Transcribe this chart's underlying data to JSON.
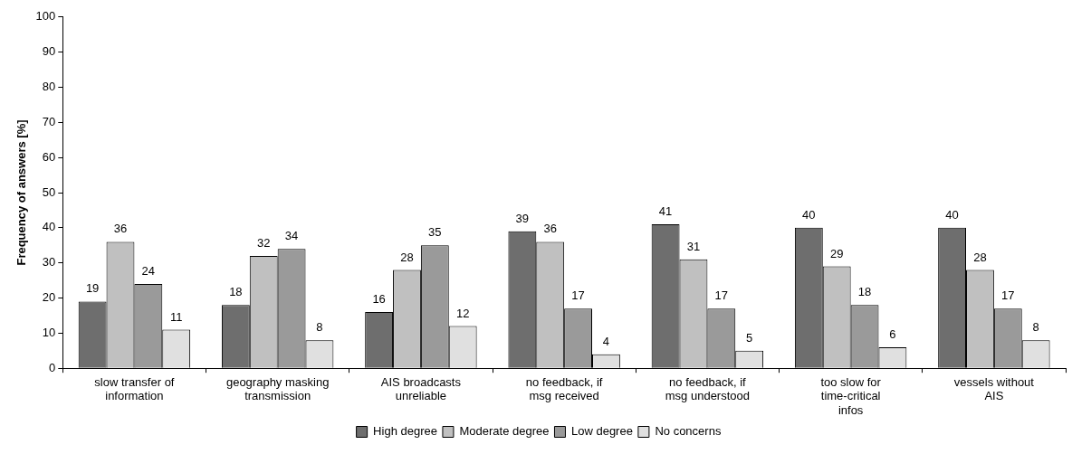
{
  "chart_data": {
    "type": "bar",
    "ylabel": "Frequency of answers [%]",
    "categories": [
      "slow transfer of information",
      "geography masking transmission",
      "AIS broadcasts unreliable",
      "no feedback, if msg received",
      "no feedback, if msg understood",
      "too slow for time-critical infos",
      "vessels without AIS"
    ],
    "series": [
      {
        "name": "High degree",
        "color": "#6e6e6e",
        "values": [
          19,
          18,
          16,
          39,
          41,
          40,
          40
        ]
      },
      {
        "name": "Moderate degree",
        "color": "#c0c0c0",
        "values": [
          36,
          32,
          28,
          36,
          31,
          29,
          28
        ]
      },
      {
        "name": "Low degree",
        "color": "#9a9a9a",
        "values": [
          24,
          34,
          35,
          17,
          17,
          18,
          17
        ]
      },
      {
        "name": "No concerns",
        "color": "#e0e0e0",
        "values": [
          11,
          8,
          12,
          4,
          5,
          6,
          8
        ]
      }
    ],
    "ylim": [
      0,
      100
    ],
    "yticks": [
      0,
      10,
      20,
      30,
      40,
      50,
      60,
      70,
      80,
      90,
      100
    ],
    "data_labels": true,
    "grid": false,
    "legend": "bottom"
  }
}
